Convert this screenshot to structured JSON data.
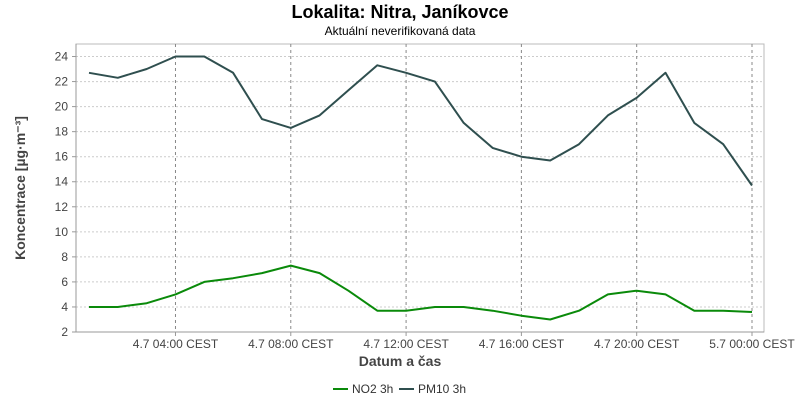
{
  "chart_data": {
    "type": "line",
    "title": "Lokalita: Nitra, Janíkovce",
    "subtitle": "Aktuální neverifikovaná data",
    "xlabel": "Datum a čas",
    "ylabel": "Koncentrace [µg·m⁻³]",
    "ylim": [
      2,
      25
    ],
    "yticks": [
      2,
      4,
      6,
      8,
      10,
      12,
      14,
      16,
      18,
      20,
      22,
      24
    ],
    "xticks": [
      "4.7 04:00 CEST",
      "4.7 08:00 CEST",
      "4.7 12:00 CEST",
      "4.7 16:00 CEST",
      "4.7 20:00 CEST",
      "5.7 00:00 CEST"
    ],
    "x": [
      "4.7 01:00",
      "4.7 02:00",
      "4.7 03:00",
      "4.7 04:00",
      "4.7 05:00",
      "4.7 06:00",
      "4.7 07:00",
      "4.7 08:00",
      "4.7 09:00",
      "4.7 10:00",
      "4.7 11:00",
      "4.7 12:00",
      "4.7 13:00",
      "4.7 14:00",
      "4.7 15:00",
      "4.7 16:00",
      "4.7 17:00",
      "4.7 18:00",
      "4.7 19:00",
      "4.7 20:00",
      "4.7 21:00",
      "4.7 22:00",
      "4.7 23:00",
      "5.7 00:00"
    ],
    "series": [
      {
        "name": "NO2 3h",
        "color": "#0a8a0a",
        "values": [
          4.0,
          4.0,
          4.3,
          5.0,
          6.0,
          6.3,
          6.7,
          7.3,
          6.7,
          5.3,
          3.7,
          3.7,
          4.0,
          4.0,
          3.7,
          3.3,
          3.0,
          3.7,
          5.0,
          5.3,
          5.0,
          3.7,
          3.7,
          3.6
        ]
      },
      {
        "name": "PM10 3h",
        "color": "#2f4f4f",
        "values": [
          22.7,
          22.3,
          23.0,
          24.0,
          24.0,
          22.7,
          19.0,
          18.3,
          19.3,
          21.3,
          23.3,
          22.7,
          22.0,
          18.7,
          16.7,
          16.0,
          15.7,
          17.0,
          19.3,
          20.7,
          22.7,
          18.7,
          17.0,
          13.7
        ]
      }
    ],
    "grid": true,
    "legend_position": "bottom-center"
  }
}
